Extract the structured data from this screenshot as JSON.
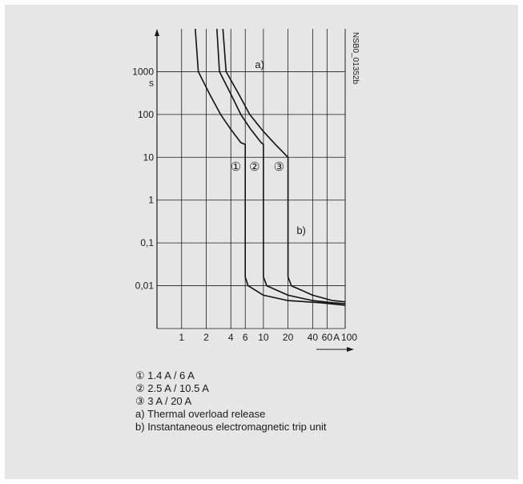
{
  "chart_data": {
    "type": "line",
    "title": "",
    "xlabel": "",
    "ylabel": "s",
    "x_unit": "A",
    "x_scale": "log",
    "y_scale": "log",
    "xlim": [
      0.5,
      100
    ],
    "ylim": [
      0.001,
      10000
    ],
    "x_ticks": [
      {
        "value": 1,
        "label": "1"
      },
      {
        "value": 2,
        "label": "2"
      },
      {
        "value": 4,
        "label": "4"
      },
      {
        "value": 6,
        "label": "6"
      },
      {
        "value": 10,
        "label": "10"
      },
      {
        "value": 20,
        "label": "20"
      },
      {
        "value": 40,
        "label": "40"
      },
      {
        "value": 60,
        "label": "60"
      },
      {
        "value": 100,
        "label": "100"
      }
    ],
    "y_ticks": [
      {
        "value": 1000,
        "label": "1000"
      },
      {
        "value": 100,
        "label": "100"
      },
      {
        "value": 10,
        "label": "10"
      },
      {
        "value": 1,
        "label": "1"
      },
      {
        "value": 0.1,
        "label": "0,1"
      },
      {
        "value": 0.01,
        "label": "0,01"
      }
    ],
    "grid": true,
    "image_id": "NSB0_01352b",
    "series": [
      {
        "marker": "①",
        "points": [
          [
            1.47,
            10000
          ],
          [
            1.6,
            1000
          ],
          [
            2.2,
            300
          ],
          [
            3,
            100
          ],
          [
            4,
            45
          ],
          [
            5.3,
            22
          ],
          [
            6,
            20
          ],
          [
            6,
            0.016
          ],
          [
            6.5,
            0.01
          ],
          [
            10,
            0.006
          ],
          [
            20,
            0.0045
          ],
          [
            50,
            0.004
          ],
          [
            100,
            0.0035
          ]
        ]
      },
      {
        "marker": "②",
        "points": [
          [
            2.7,
            10000
          ],
          [
            2.9,
            1000
          ],
          [
            4,
            300
          ],
          [
            5.3,
            100
          ],
          [
            7,
            45
          ],
          [
            9.4,
            22
          ],
          [
            10,
            20
          ],
          [
            10,
            0.016
          ],
          [
            11,
            0.01
          ],
          [
            20,
            0.006
          ],
          [
            40,
            0.0045
          ],
          [
            70,
            0.004
          ],
          [
            100,
            0.0038
          ]
        ]
      },
      {
        "marker": "③",
        "points": [
          [
            3.2,
            10000
          ],
          [
            3.5,
            1000
          ],
          [
            5,
            300
          ],
          [
            6.8,
            100
          ],
          [
            10,
            40
          ],
          [
            14,
            20
          ],
          [
            20,
            10
          ],
          [
            20,
            0.016
          ],
          [
            22,
            0.01
          ],
          [
            40,
            0.006
          ],
          [
            70,
            0.0045
          ],
          [
            100,
            0.0042
          ]
        ]
      }
    ],
    "annotations": [
      {
        "text": "a)",
        "x": 9,
        "y": 1500
      },
      {
        "text": "b)",
        "x": 29,
        "y": 0.2
      },
      {
        "text": "①",
        "x": 4.6,
        "y": 6
      },
      {
        "text": "②",
        "x": 7.8,
        "y": 6
      },
      {
        "text": "③",
        "x": 15.5,
        "y": 6
      }
    ]
  },
  "legend": [
    {
      "marker": "①",
      "text": "1.4 A / 6 A"
    },
    {
      "marker": "②",
      "text": "2.5 A / 10.5 A"
    },
    {
      "marker": "③",
      "text": "3 A / 20 A"
    },
    {
      "marker": "a)",
      "text": "Thermal overload release"
    },
    {
      "marker": "b)",
      "text": "Instantaneous electromagnetic trip unit"
    }
  ],
  "colors": {
    "background": "#e6e6e6",
    "grid": "#1a1a1a",
    "curves": "#111111"
  }
}
